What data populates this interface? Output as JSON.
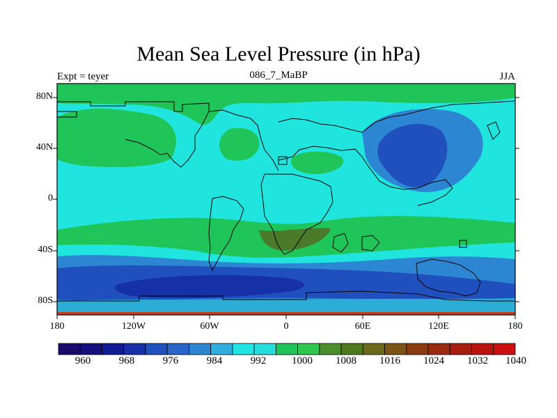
{
  "title": "Mean Sea Level Pressure (in hPa)",
  "experiment_label": "Expt = teyer",
  "run_label": "086_7_MaBP",
  "season_label": "JJA",
  "lat_ticks": [
    "80N",
    "40N",
    "0",
    "40S",
    "80S"
  ],
  "lon_ticks": [
    "180",
    "120W",
    "60W",
    "0",
    "60E",
    "120E",
    "180"
  ],
  "colorbar": {
    "labels": [
      "960",
      "968",
      "976",
      "984",
      "992",
      "1000",
      "1008",
      "1016",
      "1024",
      "1032",
      "1040"
    ],
    "colors": [
      "#1a0a6e",
      "#16107f",
      "#121c95",
      "#1530a8",
      "#1f50bd",
      "#2a66c9",
      "#2c86d2",
      "#30aee0",
      "#1fe5e5",
      "#27dcdc",
      "#20c55a",
      "#2ec84f",
      "#4a8f2c",
      "#4f7a1c",
      "#6b6a1a",
      "#7a5416",
      "#8c3a12",
      "#9b2a10",
      "#a81d10",
      "#bb1410",
      "#cc1010"
    ]
  },
  "chart_data": {
    "type": "heatmap",
    "title": "Mean Sea Level Pressure (in hPa)",
    "variable": "Mean Sea Level Pressure",
    "units": "hPa",
    "season": "JJA",
    "experiment": "teyer",
    "run": "086_7_MaBP",
    "x_range": [
      -180,
      180
    ],
    "y_range": [
      -90,
      90
    ],
    "levels": [
      960,
      964,
      968,
      972,
      976,
      980,
      984,
      988,
      992,
      996,
      1000,
      1004,
      1008,
      1012,
      1016,
      1020,
      1024,
      1028,
      1032,
      1036,
      1040
    ],
    "regions": [
      {
        "name": "background",
        "lon": [
          -180,
          180
        ],
        "lat": [
          -90,
          90
        ],
        "range": [
          1000,
          1004
        ]
      },
      {
        "name": "arctic-band",
        "lon": [
          -180,
          180
        ],
        "lat": [
          78,
          90
        ],
        "range": [
          1004,
          1012
        ]
      },
      {
        "name": "north-pacific-high",
        "lon": [
          -175,
          -95
        ],
        "lat": [
          25,
          60
        ],
        "range": [
          1004,
          1012
        ]
      },
      {
        "name": "north-atlantic-high",
        "lon": [
          -50,
          -20
        ],
        "lat": [
          25,
          55
        ],
        "range": [
          1004,
          1012
        ]
      },
      {
        "name": "mediterranean-high",
        "lon": [
          5,
          45
        ],
        "lat": [
          15,
          35
        ],
        "range": [
          1004,
          1012
        ]
      },
      {
        "name": "asian-low-outer",
        "lon": [
          60,
          150
        ],
        "lat": [
          10,
          70
        ],
        "range": [
          996,
          1000
        ]
      },
      {
        "name": "asian-low-core",
        "lon": [
          80,
          120
        ],
        "lat": [
          15,
          60
        ],
        "range": [
          988,
          996
        ]
      },
      {
        "name": "southern-subtropical-ridge",
        "lon": [
          -180,
          180
        ],
        "lat": [
          -45,
          -22
        ],
        "range": [
          1004,
          1012
        ]
      },
      {
        "name": "southern-africa-high",
        "lon": [
          -20,
          35
        ],
        "lat": [
          -42,
          -23
        ],
        "range": [
          1016,
          1020
        ]
      },
      {
        "name": "southern-trough-outer",
        "lon": [
          -180,
          180
        ],
        "lat": [
          -90,
          -42
        ],
        "range": [
          988,
          996
        ]
      },
      {
        "name": "southern-trough-mid",
        "lon": [
          -180,
          180
        ],
        "lat": [
          -75,
          -55
        ],
        "range": [
          980,
          988
        ]
      },
      {
        "name": "southern-trough-core",
        "lon": [
          -140,
          -30
        ],
        "lat": [
          -75,
          -60
        ],
        "range": [
          972,
          980
        ]
      },
      {
        "name": "antarctic-margin",
        "lon": [
          -180,
          180
        ],
        "lat": [
          -90,
          -78
        ],
        "range": [
          992,
          1000
        ]
      }
    ]
  }
}
